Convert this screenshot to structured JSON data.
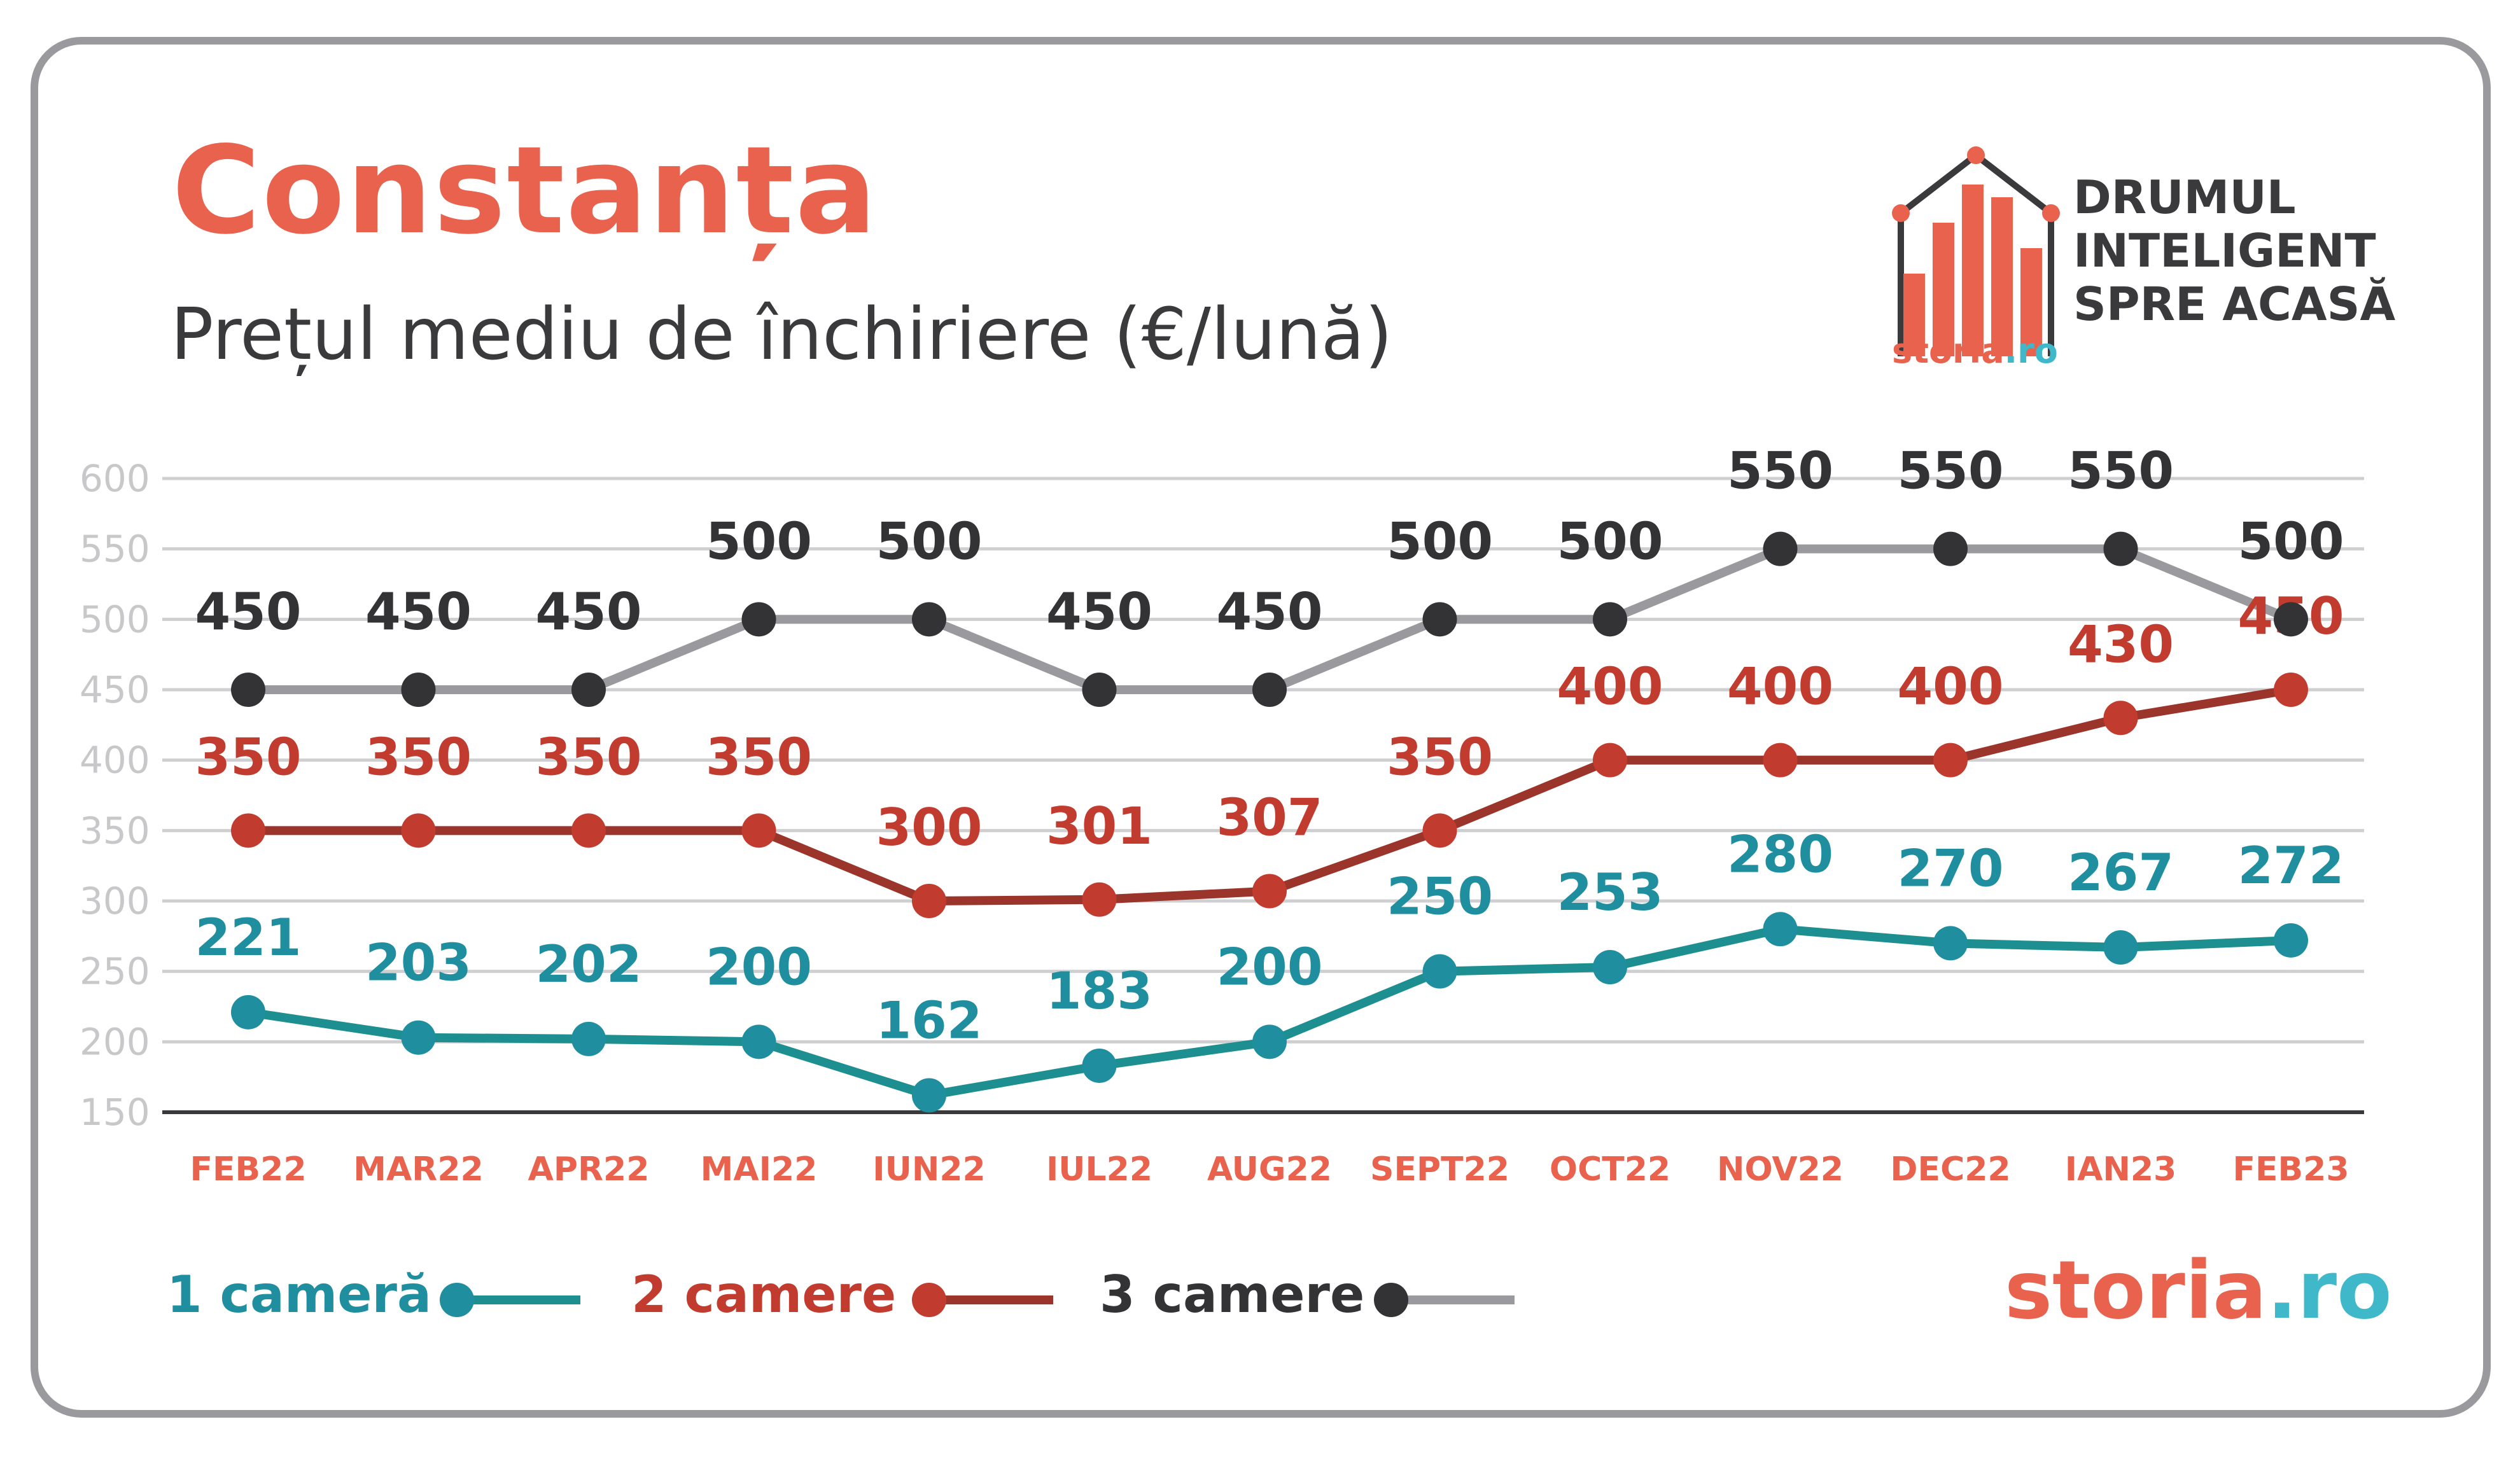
{
  "title": "Constanța",
  "subtitle": "Prețul mediu de închiriere (€/lună)",
  "brand": {
    "tagline_lines": [
      "DRUMUL",
      "INTELIGENT",
      "SPRE ACASĂ"
    ],
    "logo_small": "storia.ro",
    "footer_logo_prefix": "storia",
    "footer_logo_suffix": ".ro"
  },
  "colors": {
    "accent": "#e8624d",
    "teal": "#1e8f91",
    "teal_label": "#1f8fa0",
    "red": "#9b342b",
    "red_label": "#c23b2f",
    "gray_line": "#9a999e",
    "dark": "#333336",
    "grid": "#cfcfd1",
    "tick": "#c8c8ca"
  },
  "chart_data": {
    "type": "line",
    "categories": [
      "FEB22",
      "MAR22",
      "APR22",
      "MAI22",
      "IUN22",
      "IUL22",
      "AUG22",
      "SEPT22",
      "OCT22",
      "NOV22",
      "DEC22",
      "IAN23",
      "FEB23"
    ],
    "series": [
      {
        "name": "1 cameră",
        "values": [
          221,
          203,
          202,
          200,
          162,
          183,
          200,
          250,
          253,
          280,
          270,
          267,
          272
        ]
      },
      {
        "name": "2 camere",
        "values": [
          350,
          350,
          350,
          350,
          300,
          301,
          307,
          350,
          400,
          400,
          400,
          430,
          450
        ]
      },
      {
        "name": "3 camere",
        "values": [
          450,
          450,
          450,
          500,
          500,
          450,
          450,
          500,
          500,
          550,
          550,
          550,
          500
        ]
      }
    ],
    "yticks": [
      150,
      200,
      250,
      300,
      350,
      400,
      450,
      500,
      550,
      600
    ],
    "ylim": [
      150,
      600
    ],
    "grid": true,
    "legend_position": "bottom-left"
  }
}
